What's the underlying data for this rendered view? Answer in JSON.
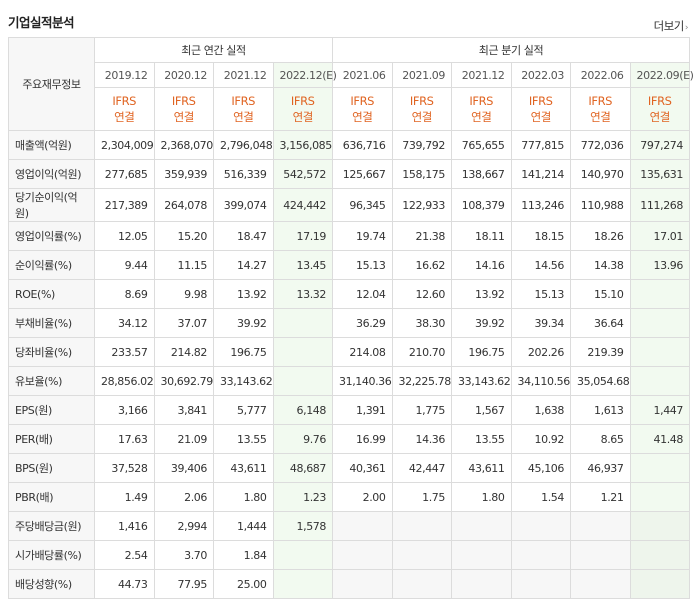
{
  "section_title": "기업실적분석",
  "more_link": "더보기",
  "header": {
    "row_label": "주요재무정보",
    "annual_group": "최근 연간 실적",
    "quarter_group": "최근 분기 실적",
    "periods": [
      "2019.12",
      "2020.12",
      "2021.12",
      "2022.12(E)",
      "2021.06",
      "2021.09",
      "2021.12",
      "2022.03",
      "2022.06",
      "2022.09(E)"
    ],
    "ifrs_line1": "IFRS",
    "ifrs_line2": "연결"
  },
  "rows": [
    {
      "label": "매출액(억원)",
      "values": [
        "2,304,009",
        "2,368,070",
        "2,796,048",
        "3,156,085",
        "636,716",
        "739,792",
        "765,655",
        "777,815",
        "772,036",
        "797,274"
      ]
    },
    {
      "label": "영업이익(억원)",
      "values": [
        "277,685",
        "359,939",
        "516,339",
        "542,572",
        "125,667",
        "158,175",
        "138,667",
        "141,214",
        "140,970",
        "135,631"
      ]
    },
    {
      "label": "당기순이익(억원)",
      "values": [
        "217,389",
        "264,078",
        "399,074",
        "424,442",
        "96,345",
        "122,933",
        "108,379",
        "113,246",
        "110,988",
        "111,268"
      ]
    },
    {
      "label": "영업이익률(%)",
      "values": [
        "12.05",
        "15.20",
        "18.47",
        "17.19",
        "19.74",
        "21.38",
        "18.11",
        "18.15",
        "18.26",
        "17.01"
      ]
    },
    {
      "label": "순이익률(%)",
      "values": [
        "9.44",
        "11.15",
        "14.27",
        "13.45",
        "15.13",
        "16.62",
        "14.16",
        "14.56",
        "14.38",
        "13.96"
      ]
    },
    {
      "label": "ROE(%)",
      "values": [
        "8.69",
        "9.98",
        "13.92",
        "13.32",
        "12.04",
        "12.60",
        "13.92",
        "15.13",
        "15.10",
        ""
      ]
    },
    {
      "label": "부채비율(%)",
      "values": [
        "34.12",
        "37.07",
        "39.92",
        "",
        "36.29",
        "38.30",
        "39.92",
        "39.34",
        "36.64",
        ""
      ]
    },
    {
      "label": "당좌비율(%)",
      "values": [
        "233.57",
        "214.82",
        "196.75",
        "",
        "214.08",
        "210.70",
        "196.75",
        "202.26",
        "219.39",
        ""
      ]
    },
    {
      "label": "유보율(%)",
      "values": [
        "28,856.02",
        "30,692.79",
        "33,143.62",
        "",
        "31,140.36",
        "32,225.78",
        "33,143.62",
        "34,110.56",
        "35,054.68",
        ""
      ]
    },
    {
      "label": "EPS(원)",
      "values": [
        "3,166",
        "3,841",
        "5,777",
        "6,148",
        "1,391",
        "1,775",
        "1,567",
        "1,638",
        "1,613",
        "1,447"
      ]
    },
    {
      "label": "PER(배)",
      "values": [
        "17.63",
        "21.09",
        "13.55",
        "9.76",
        "16.99",
        "14.36",
        "13.55",
        "10.92",
        "8.65",
        "41.48"
      ]
    },
    {
      "label": "BPS(원)",
      "values": [
        "37,528",
        "39,406",
        "43,611",
        "48,687",
        "40,361",
        "42,447",
        "43,611",
        "45,106",
        "46,937",
        ""
      ]
    },
    {
      "label": "PBR(배)",
      "values": [
        "1.49",
        "2.06",
        "1.80",
        "1.23",
        "2.00",
        "1.75",
        "1.80",
        "1.54",
        "1.21",
        ""
      ]
    },
    {
      "label": "주당배당금(원)",
      "values": [
        "1,416",
        "2,994",
        "1,444",
        "1,578",
        "",
        "",
        "",
        "",
        "",
        ""
      ]
    },
    {
      "label": "시가배당률(%)",
      "values": [
        "2.54",
        "3.70",
        "1.84",
        "",
        "",
        "",
        "",
        "",
        "",
        ""
      ]
    },
    {
      "label": "배당성향(%)",
      "values": [
        "44.73",
        "77.95",
        "25.00",
        "",
        "",
        "",
        "",
        "",
        "",
        ""
      ]
    }
  ],
  "colors": {
    "ifrs": "#e06422",
    "estimate_bg": "#f2faf0",
    "header_bg": "#f7f7f7",
    "border": "#dcdcdc"
  }
}
